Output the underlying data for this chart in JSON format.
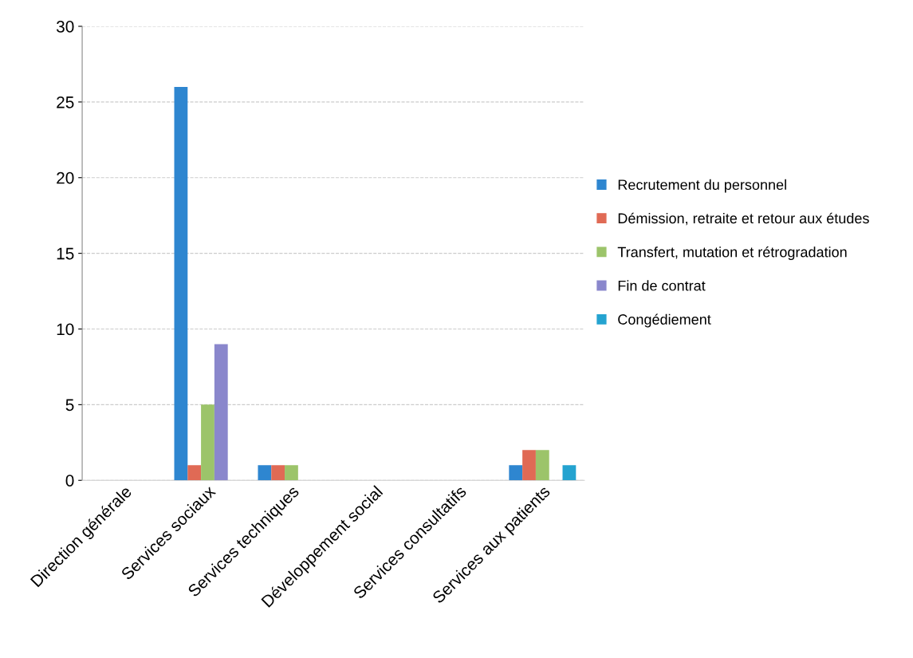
{
  "chart_data": {
    "type": "bar",
    "categories": [
      "Direction générale",
      "Services sociaux",
      "Services techniques",
      "Développement social",
      "Services consultatifs",
      "Services aux patients"
    ],
    "series": [
      {
        "name": "Recrutement du personnel",
        "color": "#2e86d0",
        "values": [
          0,
          26,
          1,
          0,
          0,
          1
        ]
      },
      {
        "name": "Démission, retraite et retour aux études",
        "color": "#e06a55",
        "values": [
          0,
          1,
          1,
          0,
          0,
          2
        ]
      },
      {
        "name": "Transfert, mutation et rétrogradation",
        "color": "#9cc46a",
        "values": [
          0,
          5,
          1,
          0,
          0,
          2
        ]
      },
      {
        "name": "Fin de contrat",
        "color": "#8a87cc",
        "values": [
          0,
          9,
          0,
          0,
          0,
          0
        ]
      },
      {
        "name": "Congédiement",
        "color": "#24a3d0",
        "values": [
          0,
          0,
          0,
          0,
          0,
          1
        ]
      }
    ],
    "ylim": [
      0,
      30
    ],
    "yticks": [
      0,
      5,
      10,
      15,
      20,
      25,
      30
    ],
    "grid": "y",
    "legend": "right"
  }
}
